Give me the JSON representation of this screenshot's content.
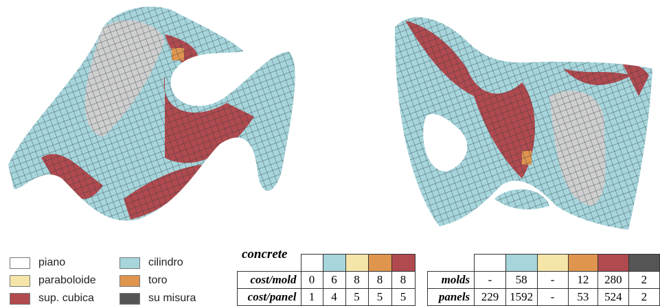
{
  "legend": {
    "items": [
      {
        "label": "piano",
        "color": "#ffffff"
      },
      {
        "label": "cilindro",
        "color": "#a6d5dc"
      },
      {
        "label": "paraboloide",
        "color": "#f6e5a8"
      },
      {
        "label": "toro",
        "color": "#e0954f"
      },
      {
        "label": "sup. cubica",
        "color": "#b04a4f"
      },
      {
        "label": "su misura",
        "color": "#555555"
      }
    ]
  },
  "table1": {
    "title": "concrete",
    "swatches": [
      "#ffffff",
      "#a6d5dc",
      "#f6e5a8",
      "#e0954f",
      "#b04a4f"
    ],
    "rows": [
      {
        "label": "cost/mold",
        "cells": [
          "0",
          "6",
          "8",
          "8",
          "8"
        ]
      },
      {
        "label": "cost/panel",
        "cells": [
          "1",
          "4",
          "5",
          "5",
          "5"
        ]
      }
    ]
  },
  "table2": {
    "swatches": [
      "#ffffff",
      "#a6d5dc",
      "#f6e5a8",
      "#e0954f",
      "#b04a4f",
      "#555555"
    ],
    "rows": [
      {
        "label": "molds",
        "cells": [
          "-",
          "58",
          "-",
          "12",
          "280",
          "2"
        ]
      },
      {
        "label": "panels",
        "cells": [
          "229",
          "1592",
          "-",
          "53",
          "524",
          "2"
        ]
      }
    ]
  }
}
